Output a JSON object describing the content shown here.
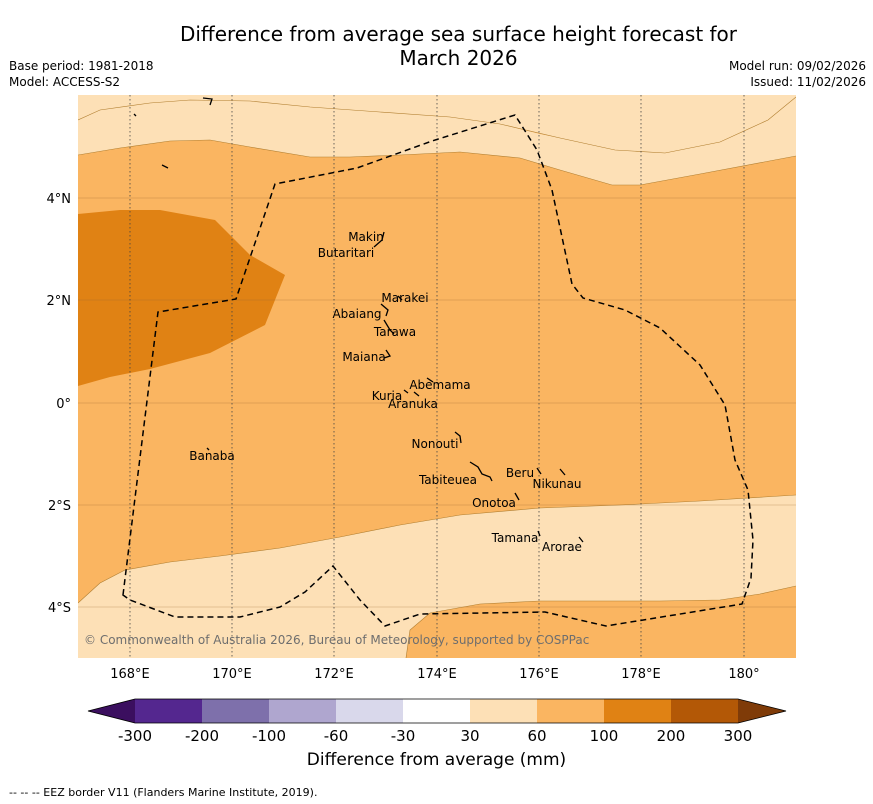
{
  "title_line1": "Difference from average sea surface height forecast for",
  "title_line2": "March 2026",
  "meta_left": {
    "base_period": "Base period: 1981-2018",
    "model": "Model: ACCESS-S2"
  },
  "meta_right": {
    "model_run": "Model run: 09/02/2026",
    "issued": "Issued: 11/02/2026"
  },
  "map": {
    "lon_ticks": [
      "168°E",
      "170°E",
      "172°E",
      "174°E",
      "176°E",
      "178°E",
      "180°"
    ],
    "lat_ticks": [
      "4°N",
      "2°N",
      "0°",
      "2°S",
      "4°S"
    ],
    "places": [
      "Makin",
      "Butaritari",
      "Marakei",
      "Abaiang",
      "Tarawa",
      "Maiana",
      "Abemama",
      "Kuria",
      "Aranuka",
      "Banaba",
      "Nonouti",
      "Tabiteuea",
      "Beru",
      "Nikunau",
      "Onotoa",
      "Tamana",
      "Arorae"
    ],
    "copyright": "© Commonwealth of Australia 2026, Bureau of Meteorology, supported by COSPPac"
  },
  "colorbar": {
    "label": "Difference from average (mm)",
    "ticks": [
      "-300",
      "-200",
      "-100",
      "-60",
      "-30",
      "30",
      "60",
      "100",
      "200",
      "300"
    ],
    "colors": [
      "#3b0f5f",
      "#54278f",
      "#7e70ab",
      "#afa6cf",
      "#d9d8eb",
      "#ffffff",
      "#fde0b6",
      "#fab561",
      "#e08214",
      "#b35806",
      "#7f3b08"
    ]
  },
  "footnote": "--  --  -- EEZ border V11 (Flanders Marine Institute, 2019)."
}
